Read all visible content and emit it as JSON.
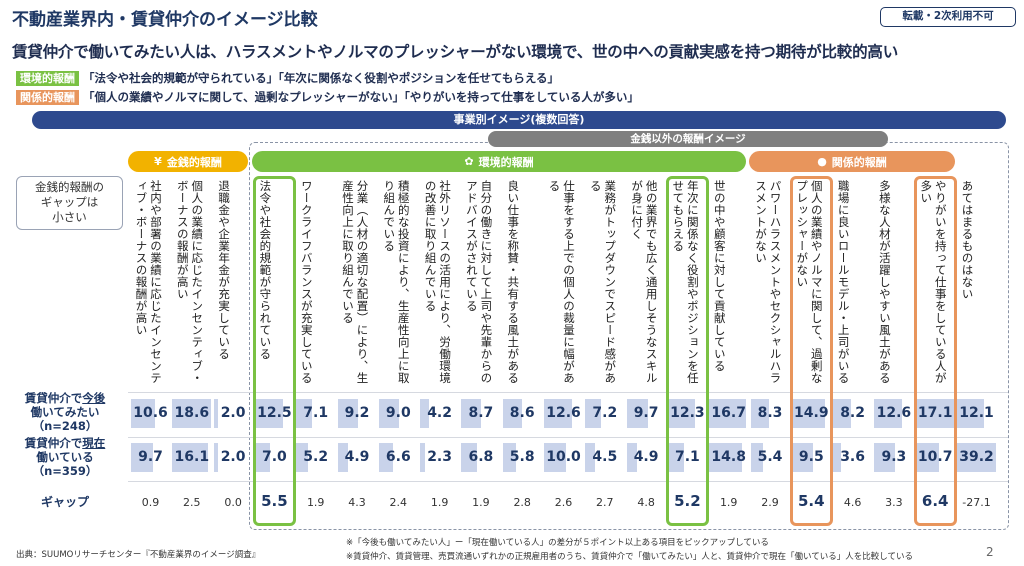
{
  "title": "不動産業界内・賃貸仲介のイメージ比較",
  "badge": "転載・2次利用不可",
  "subtitle": "賃貸仲介で働いてみたい人は、ハラスメントやノルマのプレッシャーがない環境で、世の中への貢献実感を持つ期待が比較的高い",
  "defs": [
    {
      "tag": "環境的報酬",
      "text": "「法令や社会的規範が守られている」「年次に関係なく役割やポジションを任せてもらえる」"
    },
    {
      "tag": "関係的報酬",
      "text": "「個人の業績やノルマに関して、過剰なプレッシャーがない」「やりがいを持って仕事をしている人が多い」"
    }
  ],
  "banner": "事業別イメージ(複数回答)",
  "nonmonetary": "金銭以外の報酬イメージ",
  "categories": {
    "monetary": "金銭的報酬",
    "environmental": "環境的報酬",
    "relational": "関係的報酬"
  },
  "left_note": "金銭的報酬の\nギャップは\n小さい",
  "row_labels": {
    "want_a": "賃貸仲介で",
    "want_b": "今後",
    "want_c": "働いてみたい",
    "want_n": "（n=248）",
    "now_a": "賃貸仲介で",
    "now_b": "現在",
    "now_c": "働いている",
    "now_n": "（n=359）",
    "gap": "ギャップ"
  },
  "colors": {
    "green": "#7ac143",
    "orange": "#e8955c",
    "gold": "#f2b200",
    "navy": "#1f3864",
    "bar": "#c9d3ea"
  },
  "chart_data": {
    "type": "table",
    "categories": [
      "社内や部署の業績に応じたインセンティブ・ボーナスの報酬が高い",
      "個人の業績に応じたインセンティブ・ボーナスの報酬が高い",
      "退職金や企業年金が充実している",
      "法令や社会的規範が守られている",
      "ワークライフバランスが充実している",
      "分業（人材の適切な配置）により、生産性向上に取り組んでいる",
      "積極的な投資により、生産性向上に取り組んでいる",
      "社外リソースの活用により、労働環境の改善に取り組んでいる",
      "自分の働きに対して上司や先輩からのアドバイスがされている",
      "良い仕事を称賛・共有する風土がある",
      "仕事をする上での個人の裁量に幅がある",
      "業務がトップダウンでスピード感がある",
      "他の業界でも広く通用しそうなスキルが身に付く",
      "年次に関係なく役割やポジションを任せてもらえる",
      "世の中や顧客に対して貢献している",
      "パワーハラスメントやセクシャルハラスメントがない",
      "個人の業績やノルマに関して、過剰なプレッシャーがない",
      "職場に良いロールモデル・上司がいる",
      "多様な人材が活躍しやすい風土がある",
      "やりがいを持って仕事をしている人が多い",
      "あてはまるものはない"
    ],
    "groups": [
      "monetary",
      "monetary",
      "monetary",
      "environmental",
      "environmental",
      "environmental",
      "environmental",
      "environmental",
      "environmental",
      "environmental",
      "environmental",
      "environmental",
      "environmental",
      "environmental",
      "environmental",
      "relational",
      "relational",
      "relational",
      "relational",
      "relational",
      "none"
    ],
    "series": [
      {
        "name": "賃貸仲介で今後働いてみたい（n=248）",
        "values": [
          "10.6",
          "18.6",
          "2.0",
          "12.5",
          "7.1",
          "9.2",
          "9.0",
          "4.2",
          "8.7",
          "8.6",
          "12.6",
          "7.2",
          "9.7",
          "12.3",
          "16.7",
          "8.3",
          "14.9",
          "8.2",
          "12.6",
          "17.1",
          "12.1"
        ]
      },
      {
        "name": "賃貸仲介で現在働いている（n=359）",
        "values": [
          "9.7",
          "16.1",
          "2.0",
          "7.0",
          "5.2",
          "4.9",
          "6.6",
          "2.3",
          "6.8",
          "5.8",
          "10.0",
          "4.5",
          "4.9",
          "7.1",
          "14.8",
          "5.4",
          "9.5",
          "3.6",
          "9.3",
          "10.7",
          "39.2"
        ]
      },
      {
        "name": "ギャップ",
        "values": [
          "0.9",
          "2.5",
          "0.0",
          "5.5",
          "1.9",
          "4.3",
          "2.4",
          "1.9",
          "1.9",
          "2.8",
          "2.6",
          "2.7",
          "4.8",
          "5.2",
          "1.9",
          "2.9",
          "5.4",
          "4.6",
          "3.3",
          "6.4",
          "-27.1"
        ]
      }
    ],
    "highlighted": [
      3,
      13,
      16,
      19
    ],
    "ylim": [
      0,
      40
    ]
  },
  "footer": {
    "source": "出典：SUUMOリサーチセンター『不動産業界のイメージ調査』",
    "note1": "※「今後も働いてみたい人」ー「現在働いている人」の差分が５ポイント以上ある項目をピックアップしている",
    "note2": "※賃貸仲介、賃貸管理、売買流通いずれかの正規雇用者のうち、賃貸仲介で「働いてみたい」人と、賃貸仲介で現在「働いている」人を比較している",
    "page": "2"
  }
}
